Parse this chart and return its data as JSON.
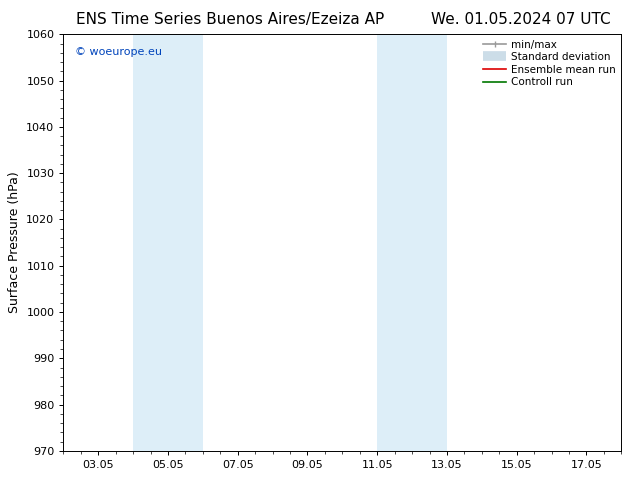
{
  "title_left": "ENS Time Series Buenos Aires/Ezeiza AP",
  "title_right": "We. 01.05.2024 07 UTC",
  "ylabel": "Surface Pressure (hPa)",
  "ylim": [
    970,
    1060
  ],
  "yticks": [
    970,
    980,
    990,
    1000,
    1010,
    1020,
    1030,
    1040,
    1050,
    1060
  ],
  "x_min": 2.0,
  "x_max": 18.0,
  "xtick_labels": [
    "03.05",
    "05.05",
    "07.05",
    "09.05",
    "11.05",
    "13.05",
    "15.05",
    "17.05"
  ],
  "xtick_positions": [
    3,
    5,
    7,
    9,
    11,
    13,
    15,
    17
  ],
  "shaded_bands": [
    {
      "x_start": 4.0,
      "x_end": 5.0
    },
    {
      "x_start": 5.0,
      "x_end": 6.0
    },
    {
      "x_start": 11.0,
      "x_end": 12.0
    },
    {
      "x_start": 12.0,
      "x_end": 13.0
    }
  ],
  "shade_color": "#ddeef8",
  "background_color": "#ffffff",
  "watermark_text": "© woeurope.eu",
  "watermark_color": "#0044bb",
  "legend_entries": [
    {
      "label": "min/max",
      "color": "#999999"
    },
    {
      "label": "Standard deviation",
      "color": "#ccdde8"
    },
    {
      "label": "Ensemble mean run",
      "color": "#dd0000"
    },
    {
      "label": "Controll run",
      "color": "#007700"
    }
  ],
  "title_fontsize": 11,
  "legend_fontsize": 7.5,
  "ylabel_fontsize": 9,
  "tick_fontsize": 8,
  "watermark_fontsize": 8
}
